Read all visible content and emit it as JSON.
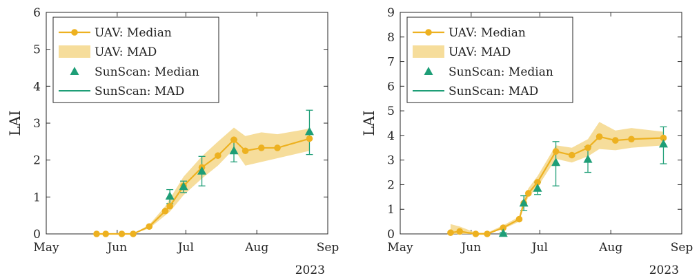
{
  "chart_data": [
    {
      "type": "line",
      "ylabel": "LAI",
      "ylim": [
        0,
        6
      ],
      "yticks": [
        0,
        1,
        2,
        3,
        4,
        5,
        6
      ],
      "x_ticks": [
        "May",
        "Jun",
        "Jul",
        "Aug",
        "Sep"
      ],
      "x_year_label": "2023",
      "xlim": [
        "2023-05-01",
        "2023-09-01"
      ],
      "grid": false,
      "legend_placement": "top-left",
      "legend": [
        "UAV: Median",
        "UAV: MAD",
        "SunScan: Median",
        "SunScan: MAD"
      ],
      "colors": {
        "uav": "#EDB120",
        "uav_band": "#F5D78A",
        "sunscan": "#1E9E77"
      },
      "series": [
        {
          "name": "UAV: Median",
          "x": [
            "2023-05-23",
            "2023-05-27",
            "2023-06-03",
            "2023-06-08",
            "2023-06-15",
            "2023-06-22",
            "2023-06-24",
            "2023-06-30",
            "2023-07-08",
            "2023-07-15",
            "2023-07-22",
            "2023-07-27",
            "2023-08-03",
            "2023-08-10",
            "2023-08-24"
          ],
          "y": [
            0,
            0,
            0,
            0,
            0.2,
            0.62,
            0.75,
            1.3,
            1.8,
            2.12,
            2.55,
            2.25,
            2.33,
            2.33,
            2.58
          ],
          "mad_lower": [
            0,
            0,
            0,
            0,
            0.15,
            0.5,
            0.6,
            1.05,
            1.5,
            1.85,
            2.3,
            1.85,
            1.95,
            2.05,
            2.25
          ],
          "mad_upper": [
            0,
            0,
            0,
            0,
            0.25,
            0.75,
            0.95,
            1.55,
            2.1,
            2.5,
            2.88,
            2.65,
            2.75,
            2.7,
            2.85
          ]
        },
        {
          "name": "SunScan: Median",
          "x": [
            "2023-06-24",
            "2023-06-30",
            "2023-07-08",
            "2023-07-22",
            "2023-08-24"
          ],
          "y": [
            1.02,
            1.28,
            1.7,
            2.25,
            2.77
          ],
          "err_lower": [
            0.82,
            1.12,
            1.3,
            1.95,
            2.15
          ],
          "err_upper": [
            1.2,
            1.43,
            2.1,
            2.55,
            3.35
          ]
        }
      ]
    },
    {
      "type": "line",
      "ylabel": "LAI",
      "ylim": [
        0,
        9
      ],
      "yticks": [
        0,
        1,
        2,
        3,
        4,
        5,
        6,
        7,
        8,
        9
      ],
      "x_ticks": [
        "May",
        "Jun",
        "Jul",
        "Aug",
        "Sep"
      ],
      "x_year_label": "2023",
      "xlim": [
        "2023-05-01",
        "2023-09-01"
      ],
      "grid": false,
      "legend_placement": "top-left",
      "legend": [
        "UAV: Median",
        "UAV: MAD",
        "SunScan: Median",
        "SunScan: MAD"
      ],
      "colors": {
        "uav": "#EDB120",
        "uav_band": "#F5D78A",
        "sunscan": "#1E9E77"
      },
      "series": [
        {
          "name": "UAV: Median",
          "x": [
            "2023-05-23",
            "2023-05-27",
            "2023-06-03",
            "2023-06-08",
            "2023-06-15",
            "2023-06-22",
            "2023-06-24",
            "2023-06-26",
            "2023-06-30",
            "2023-07-08",
            "2023-07-15",
            "2023-07-22",
            "2023-07-27",
            "2023-08-03",
            "2023-08-10",
            "2023-08-24"
          ],
          "y": [
            0.05,
            0.1,
            0,
            0,
            0.25,
            0.6,
            1.25,
            1.65,
            2.1,
            3.35,
            3.2,
            3.5,
            3.95,
            3.8,
            3.85,
            3.9
          ],
          "mad_lower": [
            0,
            0,
            0,
            0,
            0.2,
            0.5,
            1.1,
            1.5,
            1.9,
            3.05,
            2.9,
            3.15,
            3.45,
            3.4,
            3.5,
            3.6
          ],
          "mad_upper": [
            0.4,
            0.3,
            0.05,
            0.05,
            0.35,
            0.7,
            1.45,
            1.85,
            2.35,
            3.6,
            3.5,
            3.85,
            4.55,
            4.2,
            4.3,
            4.15
          ]
        },
        {
          "name": "SunScan: Median",
          "x": [
            "2023-06-15",
            "2023-06-24",
            "2023-06-30",
            "2023-07-08",
            "2023-07-22",
            "2023-08-24"
          ],
          "y": [
            0.02,
            1.25,
            1.85,
            2.9,
            3.03,
            3.65
          ],
          "err_lower": [
            0,
            0.95,
            1.6,
            1.95,
            2.5,
            2.85
          ],
          "err_upper": [
            0.05,
            1.55,
            2.1,
            3.75,
            3.55,
            4.35
          ]
        }
      ]
    }
  ]
}
